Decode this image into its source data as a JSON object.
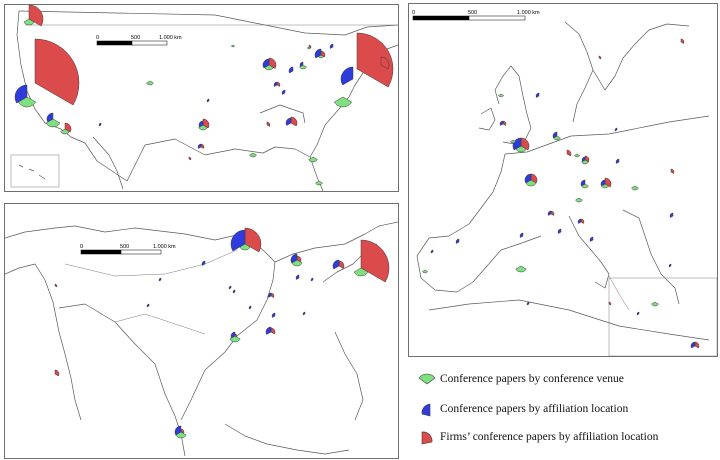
{
  "colors": {
    "venue": "#7ee07e",
    "affiliation": "#2f3bdc",
    "firms": "#dc4b4b",
    "outline": "#3a3a3a"
  },
  "scale_bars": {
    "usa": {
      "ticks": [
        "0",
        "500",
        "1.000 km"
      ]
    },
    "asia": {
      "ticks": [
        "0",
        "500",
        "1.000 km"
      ]
    },
    "europe": {
      "ticks": [
        "0",
        "500",
        "1.000 km"
      ]
    }
  },
  "legend": [
    {
      "key": "venue",
      "label": "Conference papers by conference venue",
      "icon": "green-sector-icon"
    },
    {
      "key": "affiliation",
      "label": "Conference papers by affiliation location",
      "icon": "blue-sector-icon"
    },
    {
      "key": "firms",
      "label": "Firms’ conference papers by affiliation location",
      "icon": "red-sector-icon"
    }
  ]
}
